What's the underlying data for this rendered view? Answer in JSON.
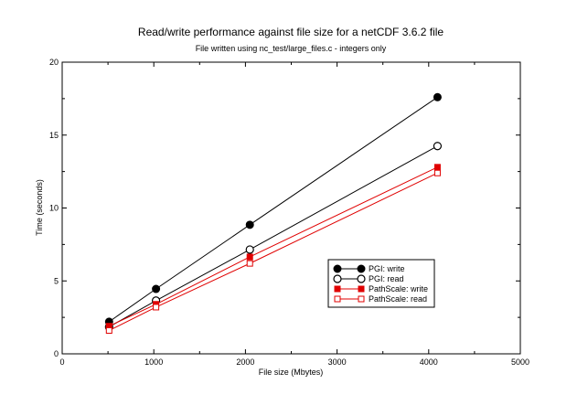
{
  "chart_data": {
    "type": "line",
    "title": "Read/write performance against file size for a netCDF 3.6.2 file",
    "subtitle": "File written using nc_test/large_files.c - integers only",
    "xlabel": "File size (Mbytes)",
    "ylabel": "Time (seconds)",
    "xlim": [
      0,
      5000
    ],
    "ylim": [
      0,
      20
    ],
    "xticks": [
      0,
      1000,
      2000,
      3000,
      4000,
      5000
    ],
    "yticks": [
      0,
      5,
      10,
      15,
      20
    ],
    "grid": false,
    "legend_position": "lower-right",
    "series": [
      {
        "name": "PGI: write",
        "color": "#000000",
        "marker": "filled-circle",
        "x": [
          512,
          1024,
          2048,
          4096
        ],
        "y": [
          2.2,
          4.45,
          8.85,
          17.6
        ]
      },
      {
        "name": "PGI: read",
        "color": "#000000",
        "marker": "open-circle",
        "x": [
          512,
          1024,
          2048,
          4096
        ],
        "y": [
          1.85,
          3.65,
          7.15,
          14.25
        ]
      },
      {
        "name": "PathScale: write",
        "color": "#e00000",
        "marker": "filled-square",
        "x": [
          512,
          1024,
          2048,
          4096
        ],
        "y": [
          1.9,
          3.4,
          6.65,
          12.8
        ]
      },
      {
        "name": "PathScale: read",
        "color": "#e00000",
        "marker": "open-square",
        "x": [
          512,
          1024,
          2048,
          4096
        ],
        "y": [
          1.6,
          3.2,
          6.2,
          12.4
        ]
      }
    ]
  }
}
